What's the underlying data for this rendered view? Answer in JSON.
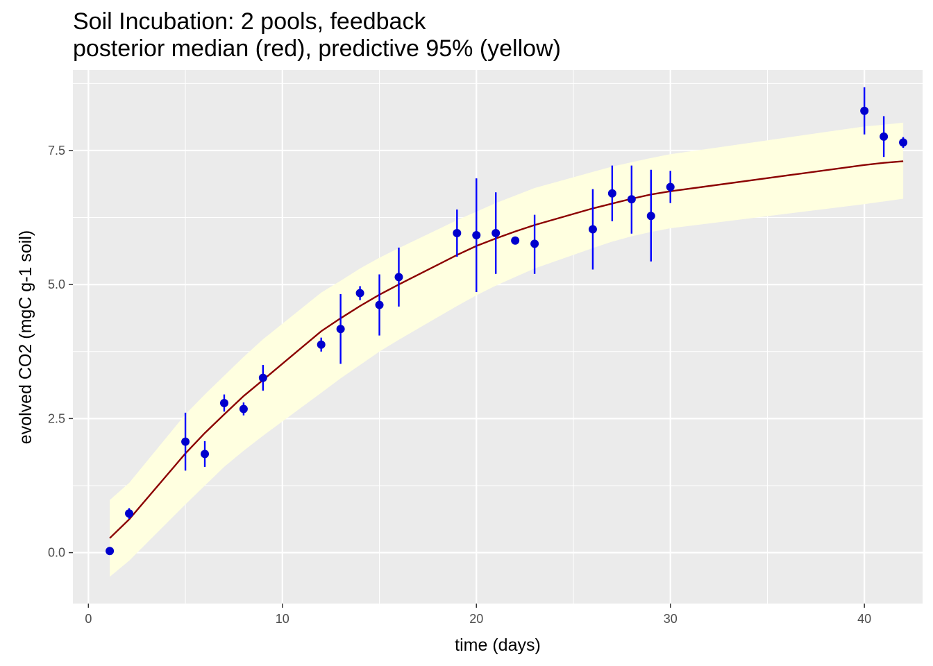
{
  "chart_data": {
    "type": "scatter",
    "title": "Soil Incubation: 2 pools, feedback",
    "subtitle": "posterior median (red), predictive 95% (yellow)",
    "xlabel": "time (days)",
    "ylabel": "evolved CO2 (mgC g-1 soil)",
    "xlim": [
      -0.8,
      43.0
    ],
    "ylim": [
      -0.95,
      9.0
    ],
    "x_ticks": [
      0,
      10,
      20,
      30,
      40
    ],
    "x_tick_labels": [
      "0",
      "10",
      "20",
      "30",
      "40"
    ],
    "y_ticks": [
      0.0,
      2.5,
      5.0,
      7.5
    ],
    "y_tick_labels": [
      "0.0",
      "2.5",
      "5.0",
      "7.5"
    ],
    "grid": true,
    "legend": "none",
    "colors": {
      "panel_background": "#ebebeb",
      "grid": "#ffffff",
      "band": "#ffffe0",
      "median_line": "#8b0000",
      "points": "#0000cd",
      "error_bars": "#0000ff"
    },
    "band": {
      "name": "predictive 95%",
      "x": [
        1.1,
        2.1,
        5,
        6,
        7,
        8,
        9,
        12,
        13,
        14,
        15,
        16,
        19,
        20,
        21,
        22,
        23,
        26,
        27,
        28,
        29,
        30,
        40,
        41,
        42
      ],
      "lower": [
        -0.45,
        -0.15,
        0.9,
        1.25,
        1.6,
        1.9,
        2.18,
        2.98,
        3.25,
        3.5,
        3.75,
        3.97,
        4.6,
        4.8,
        4.98,
        5.14,
        5.3,
        5.68,
        5.8,
        5.9,
        5.98,
        6.05,
        6.5,
        6.55,
        6.6
      ],
      "upper": [
        0.98,
        1.3,
        2.58,
        2.95,
        3.3,
        3.65,
        3.98,
        4.85,
        5.07,
        5.3,
        5.5,
        5.68,
        6.2,
        6.36,
        6.52,
        6.66,
        6.8,
        7.1,
        7.2,
        7.28,
        7.36,
        7.43,
        7.95,
        7.98,
        8.02
      ]
    },
    "median": {
      "name": "posterior median",
      "x": [
        1.1,
        2.1,
        5,
        6,
        7,
        8,
        9,
        12,
        13,
        14,
        15,
        16,
        19,
        20,
        21,
        22,
        23,
        26,
        27,
        28,
        29,
        30,
        40,
        41,
        42
      ],
      "y": [
        0.27,
        0.62,
        1.85,
        2.23,
        2.58,
        2.92,
        3.22,
        4.13,
        4.37,
        4.6,
        4.81,
        5.0,
        5.55,
        5.72,
        5.86,
        5.99,
        6.11,
        6.42,
        6.51,
        6.6,
        6.68,
        6.74,
        7.23,
        7.27,
        7.3
      ]
    },
    "observations": {
      "name": "observed",
      "x": [
        1.1,
        2.1,
        5,
        6,
        7,
        8,
        9,
        12,
        13,
        14,
        15,
        16,
        19,
        20,
        21,
        22,
        23,
        26,
        27,
        28,
        29,
        30,
        40,
        41,
        42
      ],
      "y": [
        0.03,
        0.73,
        2.07,
        1.84,
        2.79,
        2.68,
        3.26,
        3.88,
        4.17,
        4.84,
        4.62,
        5.14,
        5.96,
        5.92,
        5.96,
        5.82,
        5.76,
        6.03,
        6.7,
        6.59,
        6.28,
        6.82,
        8.24,
        7.76,
        7.65
      ],
      "lower": [
        0.0,
        0.63,
        1.53,
        1.6,
        2.63,
        2.56,
        3.02,
        3.75,
        3.52,
        4.71,
        4.05,
        4.59,
        5.52,
        4.86,
        5.2,
        5.78,
        5.2,
        5.28,
        6.18,
        5.95,
        5.43,
        6.52,
        7.8,
        7.38,
        7.55
      ],
      "upper": [
        0.06,
        0.83,
        2.61,
        2.08,
        2.95,
        2.8,
        3.5,
        4.01,
        4.82,
        4.97,
        5.19,
        5.69,
        6.4,
        6.98,
        6.72,
        5.86,
        6.3,
        6.78,
        7.22,
        7.22,
        7.14,
        7.12,
        8.68,
        8.14,
        7.75
      ]
    }
  }
}
